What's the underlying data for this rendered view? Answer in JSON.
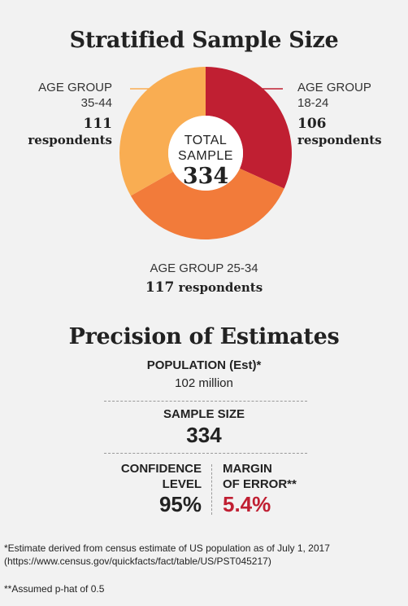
{
  "title": "Stratified Sample Size",
  "colors": {
    "g1824": "#c01f32",
    "g2534": "#f27b3a",
    "g3544": "#f9ad52",
    "hole": "#ffffff"
  },
  "chart_data": {
    "type": "pie",
    "title": "Stratified Sample Size",
    "donut": true,
    "center_label": "TOTAL SAMPLE",
    "center_value": "334",
    "slices": [
      {
        "group": "AGE GROUP",
        "range": "18-24",
        "value": 106,
        "unit": "respondents",
        "color": "#c01f32"
      },
      {
        "group": "AGE GROUP",
        "range": "25-34",
        "value": 117,
        "unit": "respondents",
        "color": "#f27b3a"
      },
      {
        "group": "AGE GROUP",
        "range": "35-44",
        "value": 111,
        "unit": "respondents",
        "color": "#f9ad52"
      }
    ]
  },
  "donut": {
    "center_line1": "TOTAL",
    "center_line2": "SAMPLE",
    "center_value": "334"
  },
  "labels": {
    "g3544": {
      "line1": "AGE GROUP",
      "line2": "35-44",
      "count": "111",
      "unit": "respondents"
    },
    "g1824": {
      "line1": "AGE GROUP",
      "line2": "18-24",
      "count": "106",
      "unit": "respondents"
    },
    "g2534": {
      "line1": "AGE GROUP 25-34",
      "count": "117",
      "unit": "respondents"
    }
  },
  "precision": {
    "title": "Precision of Estimates",
    "population_label": "POPULATION (Est)*",
    "population_value": "102 million",
    "sample_label": "SAMPLE SIZE",
    "sample_value": "334",
    "confidence_label_1": "CONFIDENCE",
    "confidence_label_2": "LEVEL",
    "confidence_value": "95%",
    "margin_label_1": "MARGIN",
    "margin_label_2": "OF ERROR**",
    "margin_value": "5.4%"
  },
  "footnotes": {
    "note1_line1": "*Estimate derived from census estimate of US population as of July 1, 2017",
    "note1_line2": "(https://www.census.gov/quickfacts/fact/table/US/PST045217)",
    "note2": "**Assumed p-hat of 0.5"
  }
}
